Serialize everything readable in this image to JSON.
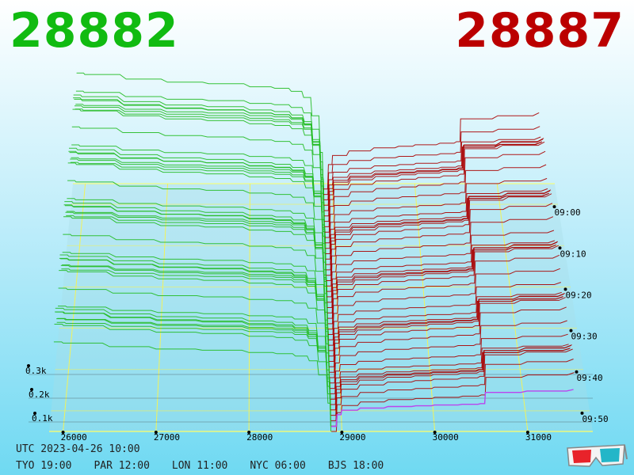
{
  "prices": {
    "bid": "28882",
    "ask": "28887",
    "bid_color": "#11bb11",
    "ask_color": "#bb0000"
  },
  "footer": {
    "utc": "UTC 2023-04-26 10:00",
    "zones": [
      "TYO 19:00",
      "PAR 12:00",
      "LON 11:00",
      "NYC 06:00",
      "BJS 18:00"
    ]
  },
  "icons": {
    "glasses": "3d-glasses-icon"
  },
  "chart_data": {
    "type": "area",
    "style": "3d-order-book-depth",
    "x_axis": {
      "ticks": [
        26000,
        27000,
        28000,
        29000,
        30000,
        31000
      ],
      "labels": [
        "26000",
        "27000",
        "28000",
        "29000",
        "30000",
        "31000"
      ],
      "range": [
        25850,
        31700
      ]
    },
    "z_axis": {
      "ticks": [
        100,
        200,
        300
      ],
      "labels": [
        "0.1k",
        "0.2k",
        "0.3k"
      ]
    },
    "time_axis": {
      "labels": [
        "09:00",
        "09:10",
        "09:20",
        "09:30",
        "09:40",
        "09:50"
      ]
    },
    "mid_price": 28885,
    "series": [
      {
        "side": "bid",
        "color": "#22bb22",
        "x": [
          25900,
          26000,
          26500,
          27000,
          27500,
          28000,
          28300,
          28500,
          28650,
          28750,
          28850,
          28882
        ],
        "depth": [
          380,
          375,
          360,
          350,
          345,
          335,
          330,
          320,
          300,
          240,
          120,
          0
        ]
      },
      {
        "side": "ask",
        "color": "#aa0000",
        "x": [
          28887,
          28950,
          29000,
          29200,
          29500,
          29800,
          30000,
          30300,
          30500,
          30550,
          31000,
          31500
        ],
        "depth": [
          0,
          80,
          110,
          125,
          135,
          140,
          145,
          150,
          155,
          230,
          240,
          250
        ]
      }
    ],
    "grid": true
  }
}
